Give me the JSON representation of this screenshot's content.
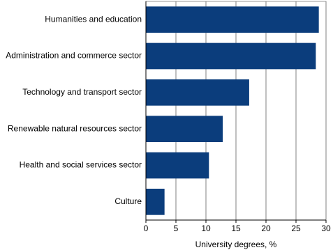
{
  "chart_data": {
    "type": "barh",
    "categories": [
      "Humanities and education",
      "Administration and commerce sector",
      "Technology and transport sector",
      "Renewable natural resources sector",
      "Health and social services sector",
      "Culture"
    ],
    "values": [
      28.8,
      28.3,
      17.2,
      12.8,
      10.5,
      3.1
    ],
    "color": "#0b3d7c",
    "xlabel": "University degrees, %",
    "xlim": [
      0,
      30
    ],
    "xticks": [
      0,
      5,
      10,
      15,
      20,
      25,
      30
    ],
    "grid": true
  }
}
